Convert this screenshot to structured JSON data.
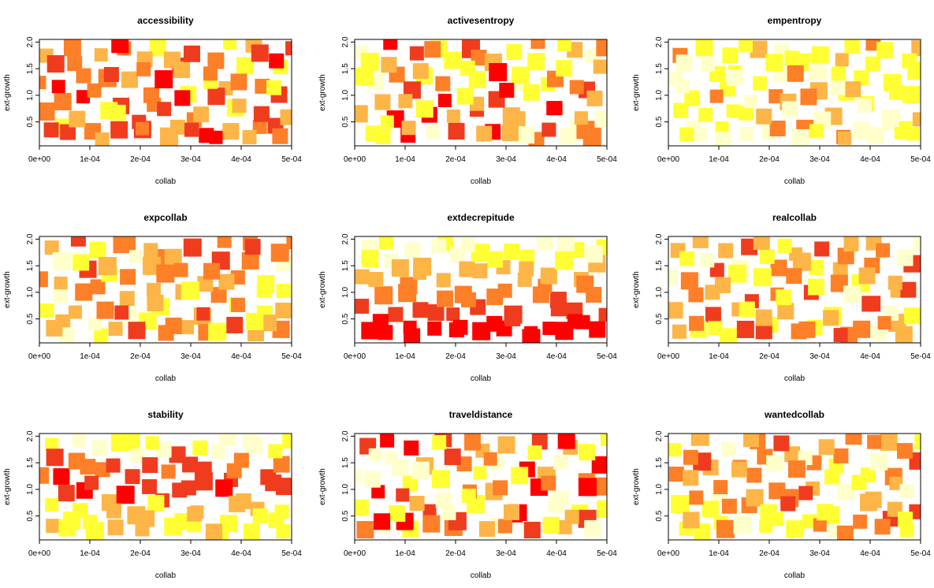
{
  "figure": {
    "colors": {
      "low": "#ffffcc",
      "mid_light": "#ffff33",
      "mid": "#fdb547",
      "mid_dark": "#fd7f28",
      "high": "#f03c1e",
      "top": "#ff0000"
    }
  },
  "chart_data": [
    {
      "type": "scatter",
      "title": "accessibility",
      "xlabel": "collab",
      "ylabel": "ext-growth",
      "xlim": [
        0,
        0.0005
      ],
      "ylim": [
        0.05,
        2.05
      ],
      "xticks": [
        "0e+00",
        "1e-04",
        "2e-04",
        "3e-04",
        "4e-04",
        "5e-04"
      ],
      "yticks": [
        "0.5",
        "1.0",
        "1.5",
        "2.0"
      ],
      "color_mode": "random_hot"
    },
    {
      "type": "scatter",
      "title": "activesentropy",
      "xlabel": "collab",
      "ylabel": "ext-growth",
      "xlim": [
        0,
        0.0005
      ],
      "ylim": [
        0.05,
        2.05
      ],
      "xticks": [
        "0e+00",
        "1e-04",
        "2e-04",
        "3e-04",
        "4e-04",
        "5e-04"
      ],
      "yticks": [
        "0.5",
        "1.0",
        "1.5",
        "2.0"
      ],
      "color_mode": "random_warm"
    },
    {
      "type": "scatter",
      "title": "empentropy",
      "xlabel": "collab",
      "ylabel": "ext-growth",
      "xlim": [
        0,
        0.0005
      ],
      "ylim": [
        0.05,
        2.05
      ],
      "xticks": [
        "0e+00",
        "1e-04",
        "2e-04",
        "3e-04",
        "4e-04",
        "5e-04"
      ],
      "yticks": [
        "0.5",
        "1.0",
        "1.5",
        "2.0"
      ],
      "color_mode": "random_pale"
    },
    {
      "type": "scatter",
      "title": "expcollab",
      "xlabel": "collab",
      "ylabel": "ext-growth",
      "xlim": [
        0,
        0.0005
      ],
      "ylim": [
        0.05,
        2.05
      ],
      "xticks": [
        "0e+00",
        "1e-04",
        "2e-04",
        "3e-04",
        "4e-04",
        "5e-04"
      ],
      "yticks": [
        "0.5",
        "1.0",
        "1.5",
        "2.0"
      ],
      "color_mode": "random_orange"
    },
    {
      "type": "scatter",
      "title": "extdecrepitude",
      "xlabel": "collab",
      "ylabel": "ext-growth",
      "xlim": [
        0,
        0.0005
      ],
      "ylim": [
        0.05,
        2.05
      ],
      "xticks": [
        "0e+00",
        "1e-04",
        "2e-04",
        "3e-04",
        "4e-04",
        "5e-04"
      ],
      "yticks": [
        "0.5",
        "1.0",
        "1.5",
        "2.0"
      ],
      "color_mode": "by_y_inverse"
    },
    {
      "type": "scatter",
      "title": "realcollab",
      "xlabel": "collab",
      "ylabel": "ext-growth",
      "xlim": [
        0,
        0.0005
      ],
      "ylim": [
        0.05,
        2.05
      ],
      "xticks": [
        "0e+00",
        "1e-04",
        "2e-04",
        "3e-04",
        "4e-04",
        "5e-04"
      ],
      "yticks": [
        "0.5",
        "1.0",
        "1.5",
        "2.0"
      ],
      "color_mode": "random_orange"
    },
    {
      "type": "scatter",
      "title": "stability",
      "xlabel": "collab",
      "ylabel": "ext-growth",
      "xlim": [
        0,
        0.0005
      ],
      "ylim": [
        0.05,
        2.05
      ],
      "xticks": [
        "0e+00",
        "1e-04",
        "2e-04",
        "3e-04",
        "4e-04",
        "5e-04"
      ],
      "yticks": [
        "0.5",
        "1.0",
        "1.5",
        "2.0"
      ],
      "color_mode": "by_y_band"
    },
    {
      "type": "scatter",
      "title": "traveldistance",
      "xlabel": "collab",
      "ylabel": "ext-growth",
      "xlim": [
        0,
        0.0005
      ],
      "ylim": [
        0.05,
        2.05
      ],
      "xticks": [
        "0e+00",
        "1e-04",
        "2e-04",
        "3e-04",
        "4e-04",
        "5e-04"
      ],
      "yticks": [
        "0.5",
        "1.0",
        "1.5",
        "2.0"
      ],
      "color_mode": "random_warm"
    },
    {
      "type": "scatter",
      "title": "wantedcollab",
      "xlabel": "collab",
      "ylabel": "ext-growth",
      "xlim": [
        0,
        0.0005
      ],
      "ylim": [
        0.05,
        2.05
      ],
      "xticks": [
        "0e+00",
        "1e-04",
        "2e-04",
        "3e-04",
        "4e-04",
        "5e-04"
      ],
      "yticks": [
        "0.5",
        "1.0",
        "1.5",
        "2.0"
      ],
      "color_mode": "random_orange"
    }
  ],
  "points": [
    [
      1e-05,
      1.3
    ],
    [
      2e-05,
      1.8
    ],
    [
      3e-05,
      0.3
    ],
    [
      4e-05,
      1.6
    ],
    [
      5e-05,
      0.9
    ],
    [
      6e-05,
      0.25
    ],
    [
      7e-05,
      1.95
    ],
    [
      8e-05,
      0.6
    ],
    [
      9e-05,
      1.4
    ],
    [
      0.0001,
      0.35
    ],
    [
      0.00011,
      1.1
    ],
    [
      0.00012,
      1.75
    ],
    [
      0.00013,
      0.7
    ],
    [
      0.00014,
      1.45
    ],
    [
      0.00015,
      0.3
    ],
    [
      0.00016,
      1.9
    ],
    [
      0.00017,
      0.85
    ],
    [
      0.00018,
      1.25
    ],
    [
      0.00019,
      0.55
    ],
    [
      0.0002,
      1.65
    ],
    [
      0.00021,
      0.4
    ],
    [
      0.00022,
      1.0
    ],
    [
      0.00023,
      1.85
    ],
    [
      0.00024,
      0.7
    ],
    [
      0.00025,
      1.35
    ],
    [
      0.00026,
      0.25
    ],
    [
      0.00027,
      1.6
    ],
    [
      0.00028,
      0.95
    ],
    [
      0.00029,
      1.45
    ],
    [
      0.0003,
      0.3
    ],
    [
      0.00031,
      1.8
    ],
    [
      0.00032,
      0.6
    ],
    [
      0.00033,
      1.2
    ],
    [
      0.00034,
      0.25
    ],
    [
      0.00035,
      1.65
    ],
    [
      0.00036,
      1.0
    ],
    [
      0.00037,
      1.95
    ],
    [
      0.00038,
      0.35
    ],
    [
      0.00039,
      1.3
    ],
    [
      0.0004,
      0.8
    ],
    [
      0.00041,
      1.55
    ],
    [
      0.00042,
      0.25
    ],
    [
      0.00043,
      1.85
    ],
    [
      0.00044,
      0.6
    ],
    [
      0.00045,
      1.2
    ],
    [
      0.00046,
      0.4
    ],
    [
      0.00047,
      1.7
    ],
    [
      0.00048,
      1.0
    ],
    [
      0.00049,
      0.6
    ],
    [
      0.000495,
      1.9
    ],
    [
      1.5e-05,
      0.7
    ],
    [
      3.5e-05,
      1.2
    ],
    [
      5.5e-05,
      0.45
    ],
    [
      7.5e-05,
      1.55
    ],
    [
      9.5e-05,
      0.95
    ],
    [
      0.000115,
      0.2
    ],
    [
      0.000135,
      1.35
    ],
    [
      0.000155,
      0.65
    ],
    [
      0.000175,
      1.9
    ],
    [
      0.000195,
      0.3
    ],
    [
      0.000215,
      1.45
    ],
    [
      0.000235,
      0.85
    ],
    [
      0.000255,
      1.7
    ],
    [
      0.000275,
      0.35
    ],
    [
      0.000295,
      1.05
    ],
    [
      0.000315,
      0.55
    ],
    [
      0.000335,
      1.4
    ],
    [
      0.000355,
      0.2
    ],
    [
      0.000375,
      1.15
    ],
    [
      0.000395,
      0.75
    ],
    [
      0.000415,
      1.95
    ],
    [
      0.000435,
      0.45
    ],
    [
      0.000455,
      1.1
    ],
    [
      0.000475,
      0.25
    ],
    [
      0.000485,
      1.5
    ]
  ]
}
